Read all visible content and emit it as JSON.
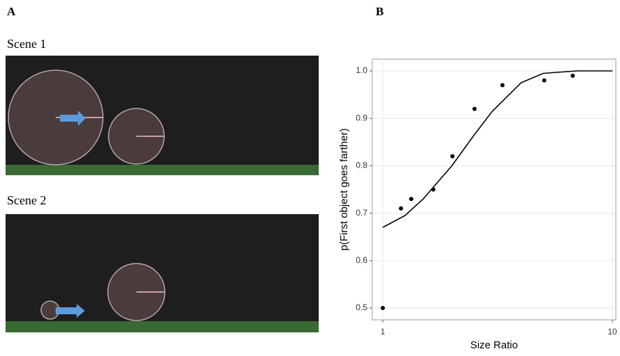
{
  "panel_a": {
    "label": "A",
    "scenes": [
      "Scene 1",
      "Scene 2"
    ]
  },
  "panel_b": {
    "label": "B"
  },
  "chart_data": {
    "type": "scatter",
    "x_label": "Size Ratio",
    "y_label": "p(First object goes farther)",
    "log_x": true,
    "grid": true,
    "point_color": "#000000",
    "curve_color": "#000000",
    "xlim": [
      0.9,
      10.35
    ],
    "ylim": [
      0.475,
      1.025
    ],
    "xticks": [
      1,
      10
    ],
    "yticks": [
      0.5,
      0.6,
      0.7,
      0.8,
      0.9,
      {
        "value": 1,
        "label": "1.0"
      }
    ],
    "points": {
      "x": [
        1,
        1.2,
        1.33,
        1.66,
        2.01,
        2.51,
        3.32,
        5.05,
        6.72
      ],
      "y": [
        0.5,
        0.71,
        0.73,
        0.75,
        0.82,
        0.92,
        0.97,
        0.98,
        0.99
      ]
    },
    "fit": {
      "x": [
        1,
        1.25,
        1.5,
        2,
        2.5,
        3,
        4,
        5,
        7,
        10
      ],
      "y": [
        0.67,
        0.695,
        0.73,
        0.8,
        0.865,
        0.915,
        0.975,
        0.995,
        1,
        1
      ]
    }
  }
}
